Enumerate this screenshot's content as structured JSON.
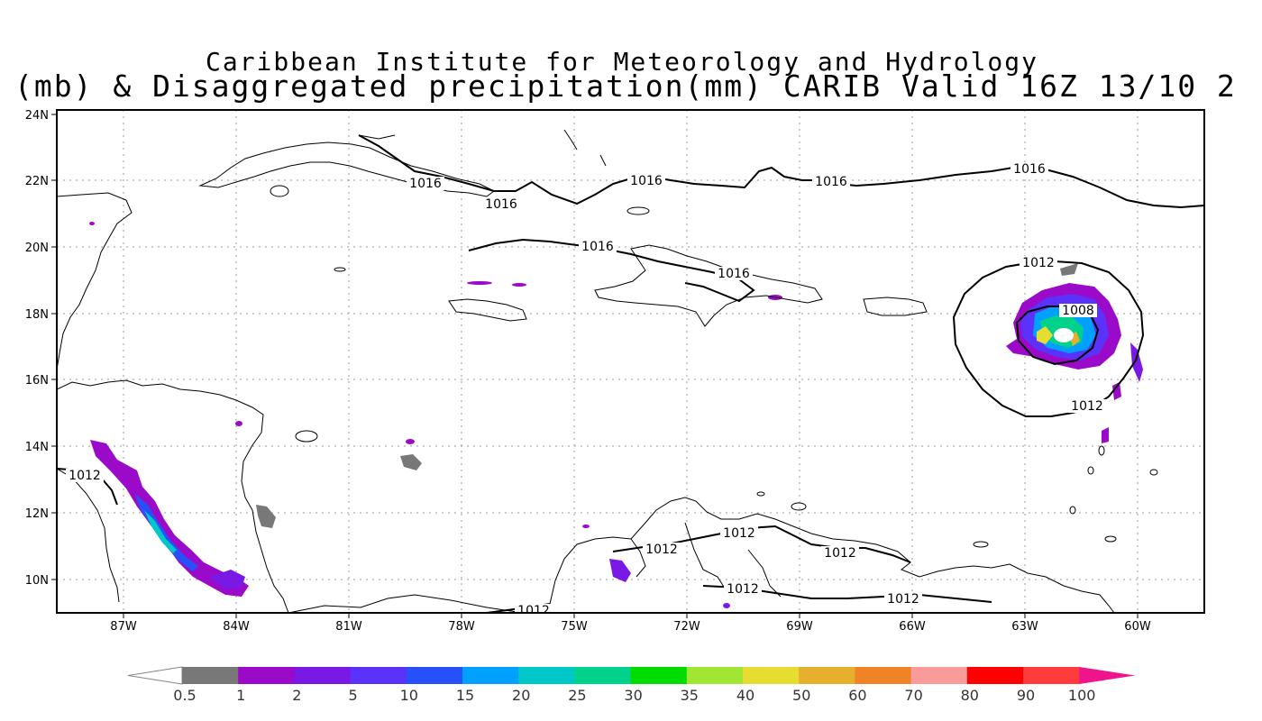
{
  "title": {
    "line1": "Caribbean Institute for Meteorology and Hydrology",
    "line2": "(mb) & Disaggregated precipitation(mm) CARIB Valid 16Z 13/10 2"
  },
  "map": {
    "lon_labels": [
      "87W",
      "84W",
      "81W",
      "78W",
      "75W",
      "72W",
      "69W",
      "66W",
      "63W",
      "60W"
    ],
    "lat_labels": [
      "24N",
      "22N",
      "20N",
      "18N",
      "16N",
      "14N",
      "12N",
      "10N"
    ],
    "isobars": [
      {
        "label": "1016"
      },
      {
        "label": "1016"
      },
      {
        "label": "1016"
      },
      {
        "label": "1016"
      },
      {
        "label": "1016"
      },
      {
        "label": "1016"
      },
      {
        "label": "1016"
      },
      {
        "label": "1012"
      },
      {
        "label": "1008"
      },
      {
        "label": "1012"
      },
      {
        "label": "1012"
      },
      {
        "label": "1012"
      },
      {
        "label": "1012"
      },
      {
        "label": "1012"
      },
      {
        "label": "1012"
      },
      {
        "label": "1012"
      },
      {
        "label": "1012"
      }
    ]
  },
  "colorbar": {
    "labels": [
      "0.5",
      "1",
      "2",
      "5",
      "10",
      "15",
      "20",
      "25",
      "30",
      "35",
      "40",
      "50",
      "60",
      "70",
      "80",
      "90",
      "100"
    ],
    "colors": [
      "#787878",
      "#9a0ac8",
      "#7a18e6",
      "#5a32fa",
      "#2850fa",
      "#00a0ff",
      "#00c8c8",
      "#00d28c",
      "#00dc00",
      "#a0e632",
      "#e6dc32",
      "#e6af2d",
      "#f08228",
      "#fa9b9b",
      "#ff0000",
      "#ff3c3c"
    ],
    "left_arrow_color": "#ffffff",
    "right_arrow_color": "#f0148c"
  }
}
